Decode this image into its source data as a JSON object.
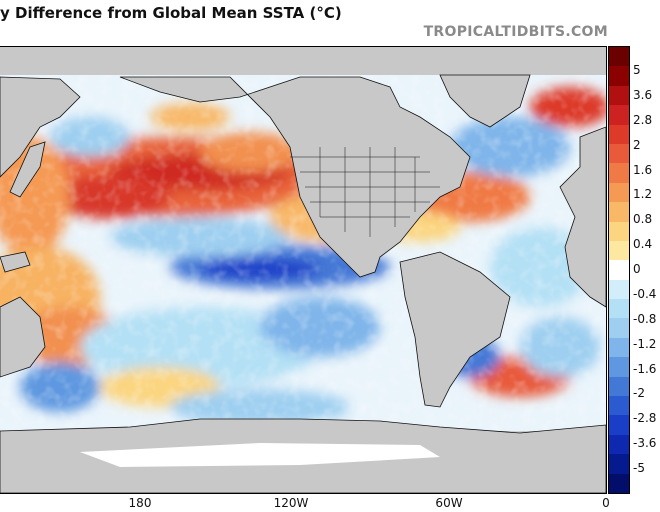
{
  "header": {
    "title": "y Difference from Global Mean SSTA (°C)",
    "brand": "TROPICALTIDBITS.COM"
  },
  "map": {
    "x_axis_labels": [
      "180",
      "120W",
      "60W",
      "0"
    ],
    "land_color": "#c8c8c8",
    "ice_color": "#ffffff"
  },
  "colorbar": {
    "colors": [
      "#6b0000",
      "#8b0000",
      "#b01010",
      "#cc2222",
      "#dd3a2a",
      "#e85a3a",
      "#f07a45",
      "#f59a55",
      "#f8b868",
      "#fbd580",
      "#fce8a0",
      "#ffffff",
      "#d2eefa",
      "#b4e0f5",
      "#9ecff0",
      "#7fb5ea",
      "#5f98e0",
      "#4478d6",
      "#2c5ad0",
      "#1a3ec8",
      "#0e28b0",
      "#061a90",
      "#020e6a"
    ],
    "labels": [
      "5",
      "3.6",
      "2.8",
      "2",
      "1.6",
      "1.2",
      "0.8",
      "0.4",
      "0",
      "-0.4",
      "-0.8",
      "-1.2",
      "-1.6",
      "-2",
      "-2.8",
      "-3.6",
      "-5"
    ]
  }
}
